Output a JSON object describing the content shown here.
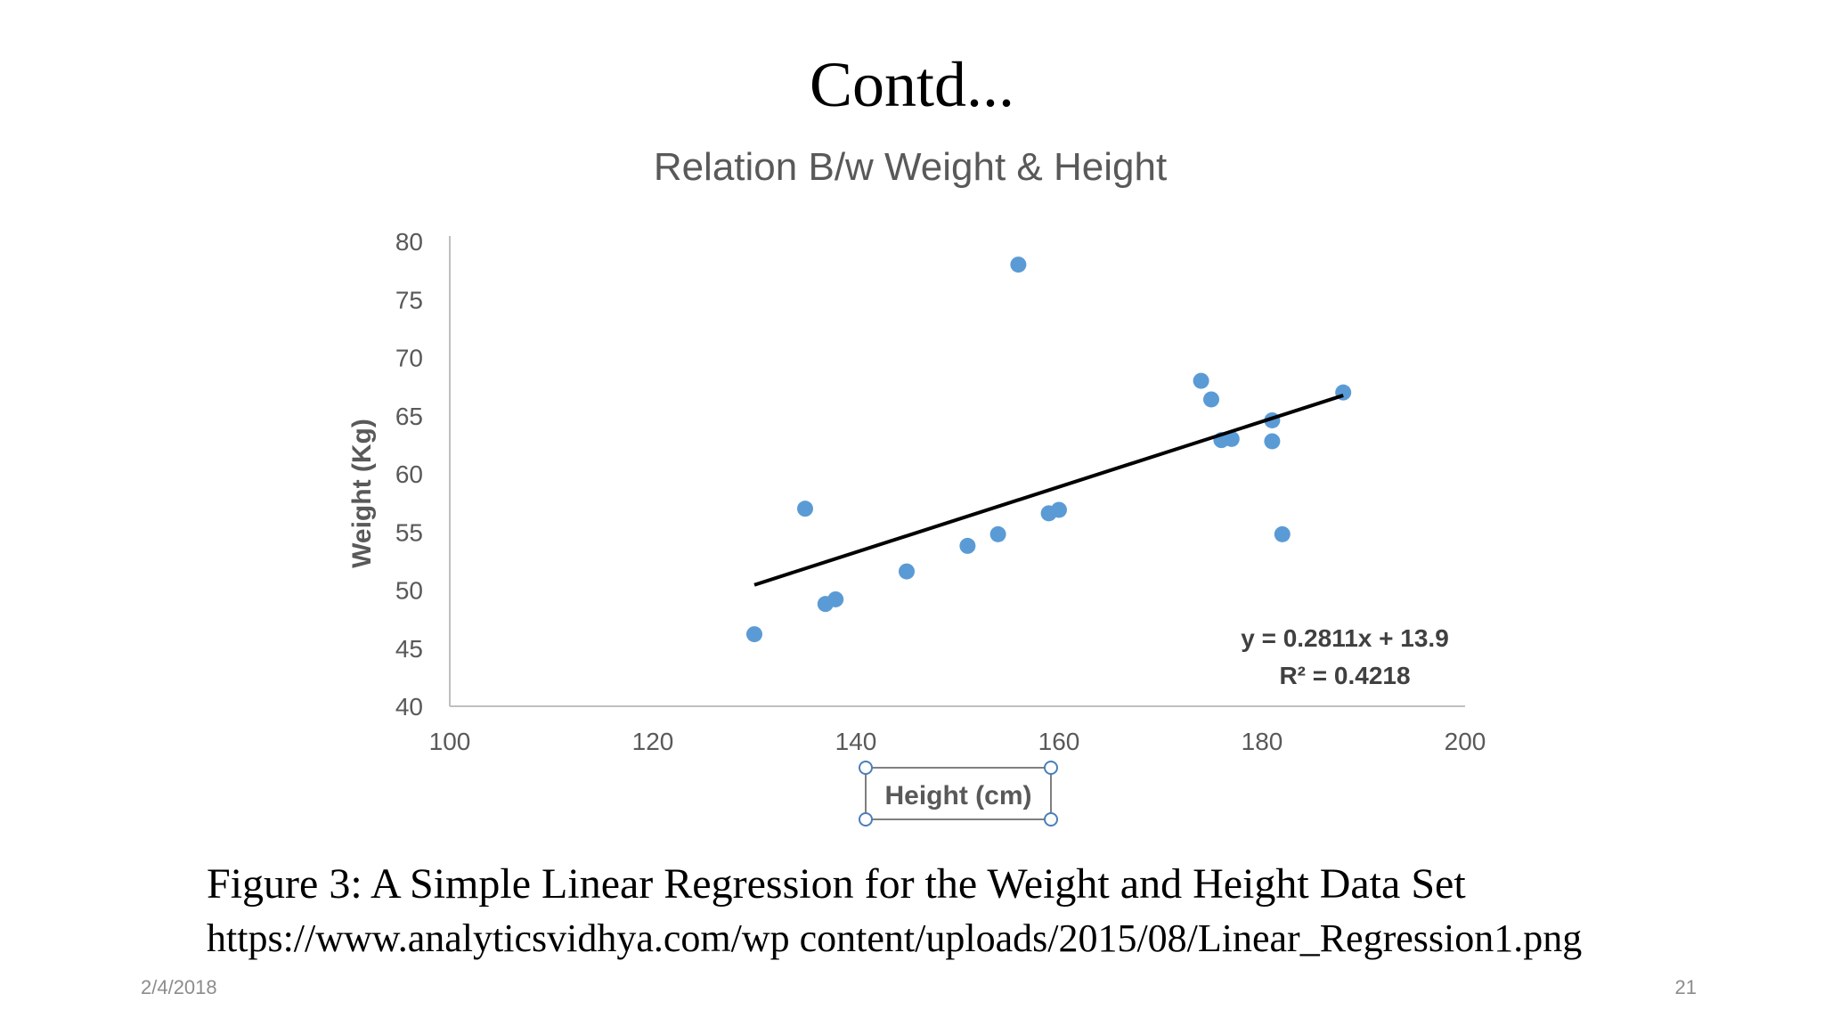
{
  "slide": {
    "title": "Contd...",
    "caption": "Figure 3: A Simple Linear Regression for the Weight and Height Data Set",
    "source": "https://www.analyticsvidhya.com/wp content/uploads/2015/08/Linear_Regression1.png",
    "date": "2/4/2018",
    "page_number": "21"
  },
  "chart_data": {
    "type": "scatter",
    "title": "Relation B/w Weight & Height",
    "xlabel": "Height (cm)",
    "ylabel": "Weight (Kg)",
    "xlim": [
      100,
      200
    ],
    "ylim": [
      40,
      80
    ],
    "xticks": [
      100,
      120,
      140,
      160,
      180,
      200
    ],
    "yticks": [
      40,
      45,
      50,
      55,
      60,
      65,
      70,
      75,
      80
    ],
    "grid": false,
    "points": [
      {
        "x": 130,
        "y": 46.2
      },
      {
        "x": 135,
        "y": 57
      },
      {
        "x": 137,
        "y": 48.8
      },
      {
        "x": 138,
        "y": 49.2
      },
      {
        "x": 145,
        "y": 51.6
      },
      {
        "x": 151,
        "y": 53.8
      },
      {
        "x": 154,
        "y": 54.8
      },
      {
        "x": 156,
        "y": 78
      },
      {
        "x": 159,
        "y": 56.6
      },
      {
        "x": 160,
        "y": 56.9
      },
      {
        "x": 174,
        "y": 68
      },
      {
        "x": 175,
        "y": 66.4
      },
      {
        "x": 176,
        "y": 62.9
      },
      {
        "x": 177,
        "y": 63
      },
      {
        "x": 181,
        "y": 64.6
      },
      {
        "x": 181,
        "y": 62.8
      },
      {
        "x": 182,
        "y": 54.8
      },
      {
        "x": 188,
        "y": 67
      }
    ],
    "trendline": {
      "slope": 0.2811,
      "intercept": 13.9,
      "x_range": [
        130,
        188
      ],
      "equation_label": "y = 0.2811x + 13.9",
      "r2_label": "R² = 0.4218"
    },
    "colors": {
      "point": "#5b9bd5",
      "trendline": "#000000",
      "axis": "#bfbfbf",
      "text": "#595959"
    }
  }
}
